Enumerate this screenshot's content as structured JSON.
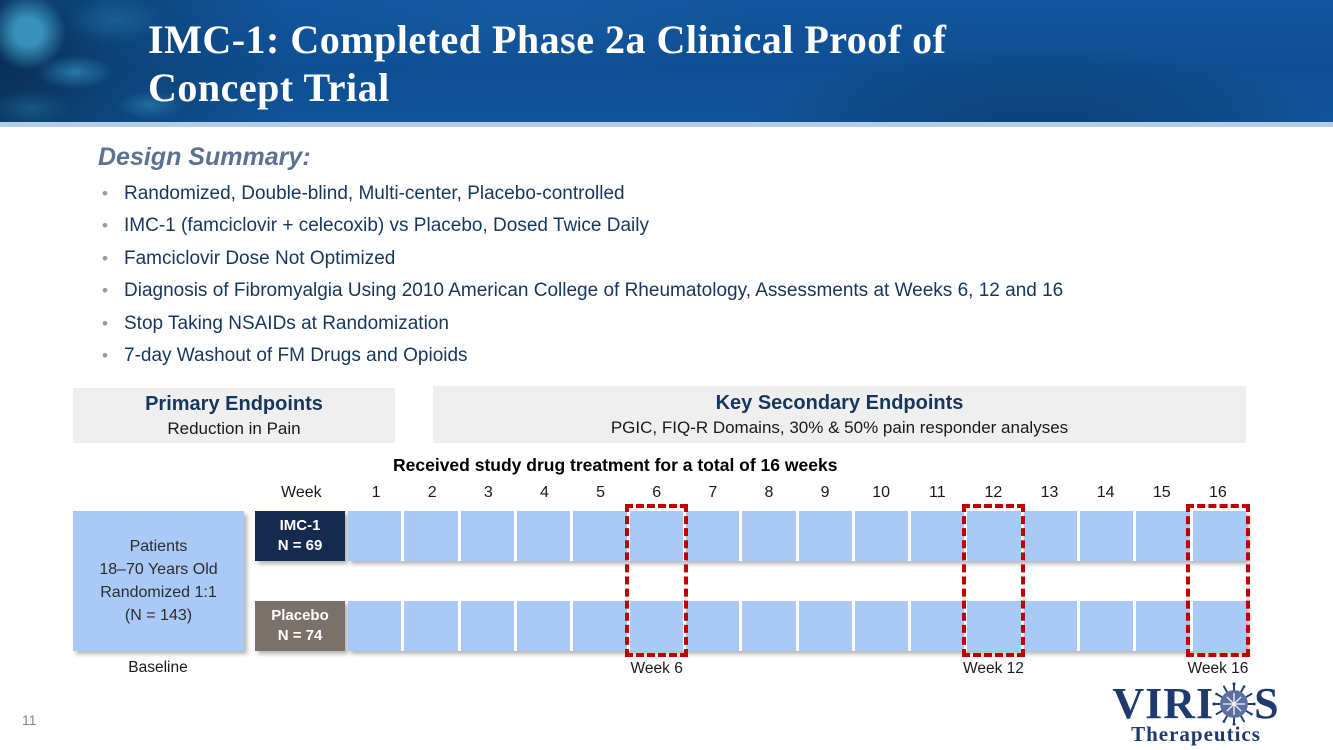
{
  "slide": {
    "page_number": "11",
    "title_line1": "IMC-1: Completed Phase 2a Clinical Proof of",
    "title_line2": "Concept Trial"
  },
  "design_summary": {
    "heading": "Design Summary:",
    "bullets": [
      "Randomized, Double-blind, Multi-center, Placebo-controlled",
      "IMC-1 (famciclovir + celecoxib) vs Placebo, Dosed Twice Daily",
      "Famciclovir Dose Not Optimized",
      "Diagnosis of Fibromyalgia Using 2010 American College of Rheumatology, Assessments at Weeks 6, 12 and 16",
      "Stop Taking NSAIDs at Randomization",
      "7-day Washout of FM Drugs and Opioids"
    ]
  },
  "endpoints": {
    "primary": {
      "title": "Primary Endpoints",
      "subtitle": "Reduction in Pain"
    },
    "secondary": {
      "title": "Key Secondary Endpoints",
      "subtitle": "PGIC, FIQ-R Domains, 30% & 50% pain responder analyses"
    }
  },
  "timeline": {
    "treatment_note": "Received study drug treatment for a total of 16 weeks",
    "week_header": "Week",
    "weeks": [
      "1",
      "2",
      "3",
      "4",
      "5",
      "6",
      "7",
      "8",
      "9",
      "10",
      "11",
      "12",
      "13",
      "14",
      "15",
      "16"
    ],
    "assessment_weeks": [
      6,
      12,
      16
    ],
    "assessment_labels": [
      "Week 6",
      "Week 12",
      "Week 16"
    ],
    "baseline_label": "Baseline",
    "patients_box_lines": [
      "Patients",
      "18–70 Years Old",
      "Randomized 1:1",
      "(N = 143)"
    ],
    "arms": [
      {
        "name": "IMC-1",
        "label_line1": "IMC-1",
        "label_line2": "N = 69",
        "label_color": "#16294e"
      },
      {
        "name": "Placebo",
        "label_line1": "Placebo",
        "label_line2": "N = 74",
        "label_color": "#7a716b"
      }
    ],
    "colors": {
      "cell_fill": "#a9c9f6",
      "assessment_border": "#c00000"
    }
  },
  "logo": {
    "word_part1": "VIRI",
    "word_part2": "S",
    "subtitle": "Therapeutics",
    "color": "#1f3a70"
  }
}
